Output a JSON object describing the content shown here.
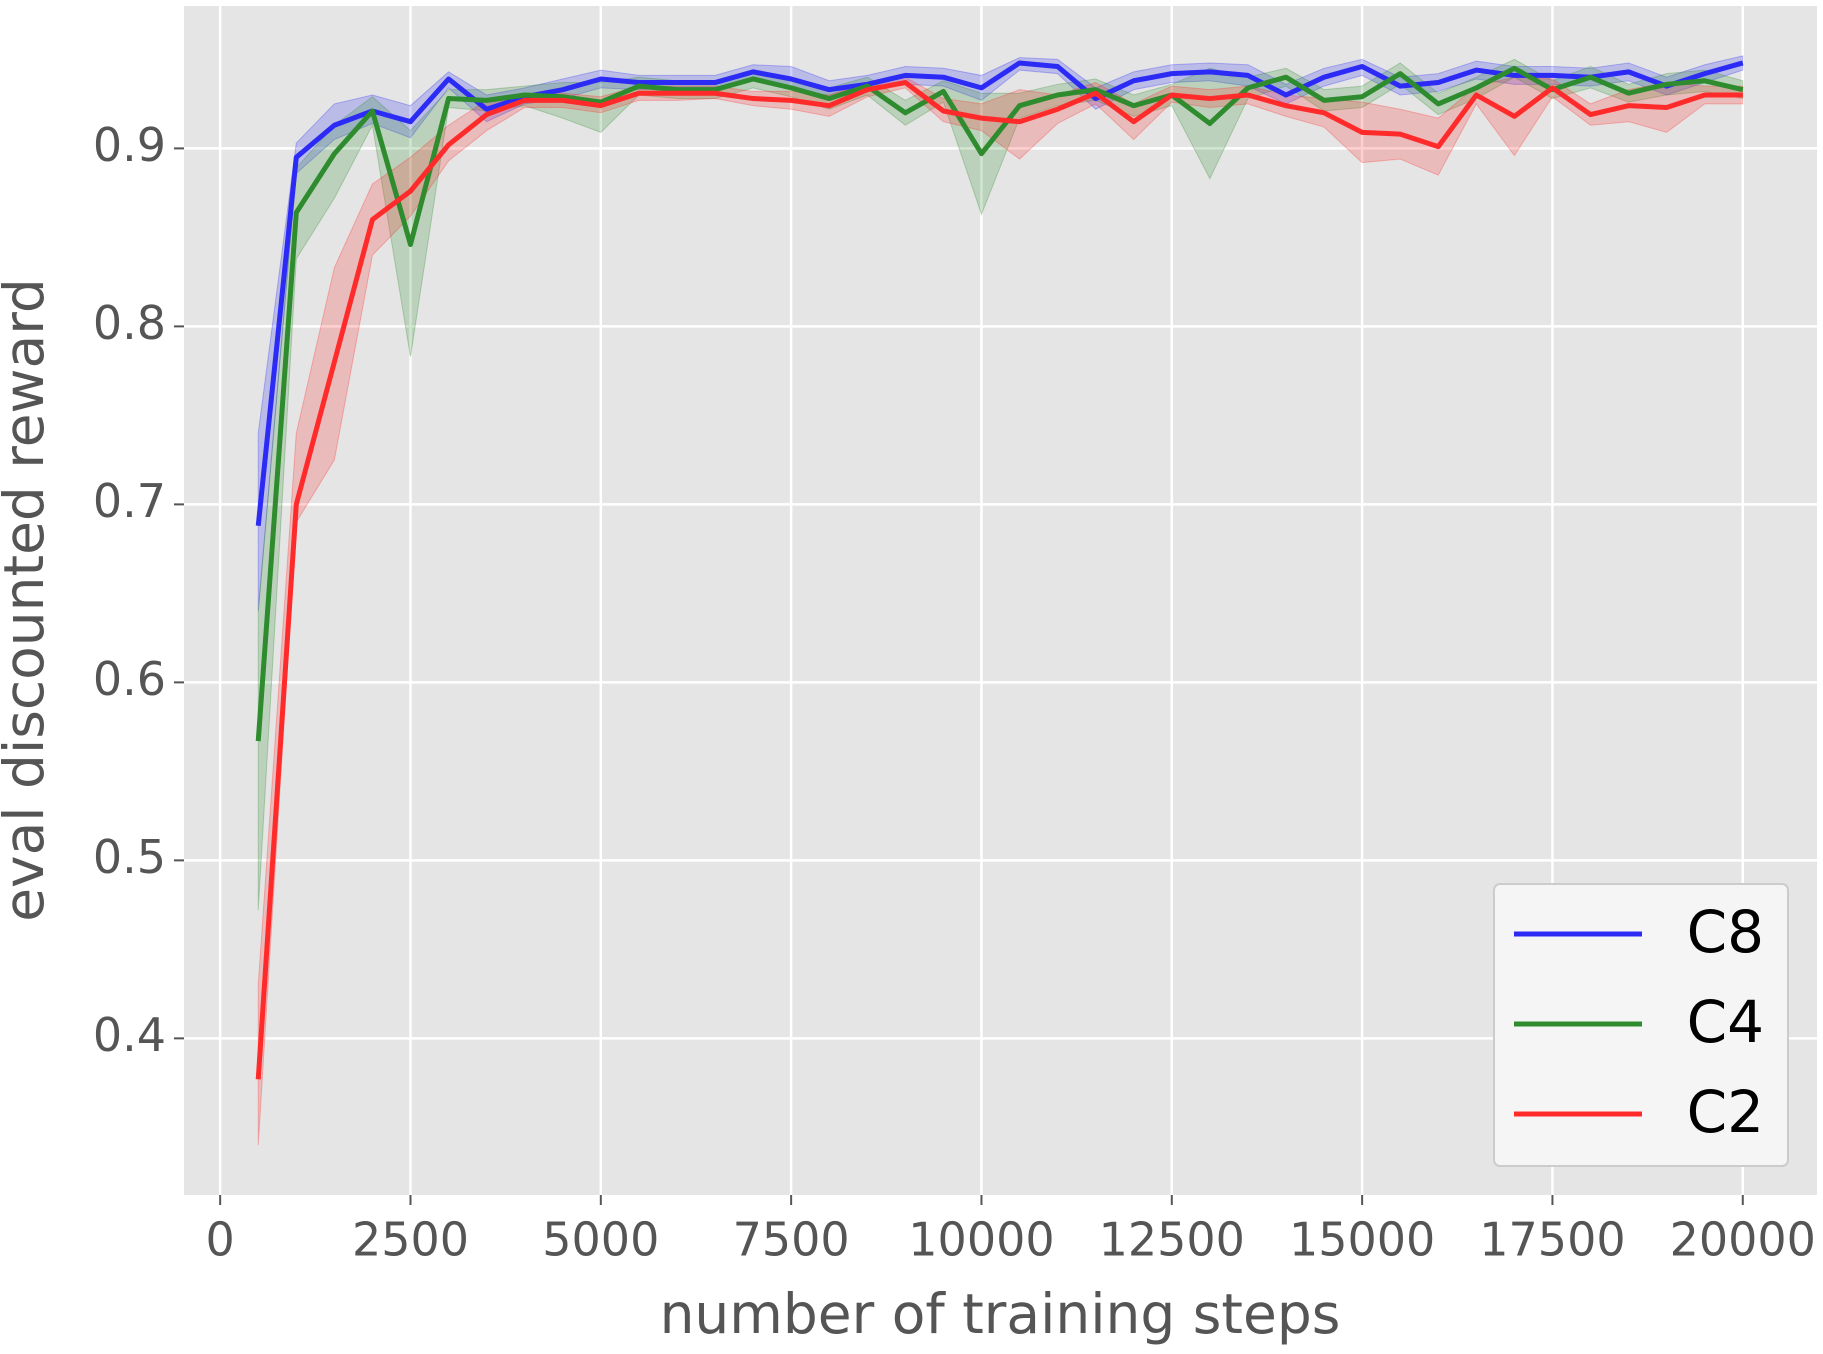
{
  "chart_data": {
    "type": "line",
    "xlabel": "number of training steps",
    "ylabel": "eval discounted reward",
    "x": [
      500,
      1000,
      1500,
      2000,
      2500,
      3000,
      3500,
      4000,
      4500,
      5000,
      5500,
      6000,
      6500,
      7000,
      7500,
      8000,
      8500,
      9000,
      9500,
      10000,
      10500,
      11000,
      11500,
      12000,
      12500,
      13000,
      13500,
      14000,
      14500,
      15000,
      15500,
      16000,
      16500,
      17000,
      17500,
      18000,
      18500,
      19000,
      19500,
      20000
    ],
    "series": [
      {
        "name": "C8",
        "color": "#2b2bf5",
        "values": [
          0.688,
          0.895,
          0.913,
          0.921,
          0.915,
          0.939,
          0.922,
          0.929,
          0.933,
          0.939,
          0.937,
          0.937,
          0.937,
          0.943,
          0.939,
          0.933,
          0.936,
          0.941,
          0.94,
          0.934,
          0.948,
          0.946,
          0.928,
          0.938,
          0.942,
          0.943,
          0.941,
          0.93,
          0.94,
          0.946,
          0.935,
          0.937,
          0.944,
          0.941,
          0.941,
          0.94,
          0.943,
          0.935,
          0.942,
          0.948
        ],
        "lower": [
          0.64,
          0.886,
          0.905,
          0.914,
          0.906,
          0.934,
          0.915,
          0.925,
          0.928,
          0.934,
          0.933,
          0.934,
          0.934,
          0.939,
          0.933,
          0.928,
          0.932,
          0.936,
          0.935,
          0.927,
          0.944,
          0.942,
          0.922,
          0.933,
          0.937,
          0.938,
          0.935,
          0.925,
          0.935,
          0.941,
          0.93,
          0.932,
          0.939,
          0.936,
          0.936,
          0.935,
          0.938,
          0.93,
          0.937,
          0.944
        ],
        "upper": [
          0.74,
          0.903,
          0.925,
          0.93,
          0.924,
          0.943,
          0.93,
          0.934,
          0.939,
          0.944,
          0.941,
          0.941,
          0.941,
          0.947,
          0.946,
          0.938,
          0.941,
          0.946,
          0.945,
          0.941,
          0.951,
          0.95,
          0.934,
          0.943,
          0.947,
          0.948,
          0.947,
          0.936,
          0.945,
          0.95,
          0.94,
          0.942,
          0.949,
          0.946,
          0.946,
          0.945,
          0.948,
          0.94,
          0.947,
          0.952
        ]
      },
      {
        "name": "C4",
        "color": "#2e8b2e",
        "values": [
          0.567,
          0.864,
          0.897,
          0.921,
          0.846,
          0.928,
          0.927,
          0.93,
          0.929,
          0.926,
          0.935,
          0.933,
          0.933,
          0.939,
          0.934,
          0.928,
          0.935,
          0.92,
          0.932,
          0.897,
          0.924,
          0.93,
          0.933,
          0.924,
          0.93,
          0.914,
          0.934,
          0.94,
          0.927,
          0.929,
          0.942,
          0.925,
          0.934,
          0.945,
          0.933,
          0.94,
          0.931,
          0.936,
          0.938,
          0.933
        ],
        "lower": [
          0.472,
          0.838,
          0.872,
          0.913,
          0.783,
          0.923,
          0.921,
          0.924,
          0.917,
          0.909,
          0.93,
          0.928,
          0.928,
          0.934,
          0.929,
          0.922,
          0.93,
          0.913,
          0.926,
          0.863,
          0.917,
          0.924,
          0.927,
          0.918,
          0.924,
          0.883,
          0.928,
          0.935,
          0.921,
          0.923,
          0.936,
          0.919,
          0.928,
          0.94,
          0.928,
          0.934,
          0.926,
          0.93,
          0.932,
          0.928
        ],
        "upper": [
          0.64,
          0.889,
          0.913,
          0.929,
          0.91,
          0.933,
          0.933,
          0.935,
          0.937,
          0.937,
          0.94,
          0.938,
          0.938,
          0.944,
          0.939,
          0.934,
          0.94,
          0.927,
          0.938,
          0.931,
          0.931,
          0.936,
          0.939,
          0.93,
          0.936,
          0.945,
          0.94,
          0.945,
          0.933,
          0.935,
          0.948,
          0.931,
          0.94,
          0.95,
          0.938,
          0.946,
          0.936,
          0.942,
          0.944,
          0.938
        ]
      },
      {
        "name": "C2",
        "color": "#ff2b2b",
        "values": [
          0.377,
          0.7,
          0.78,
          0.86,
          0.876,
          0.902,
          0.919,
          0.927,
          0.927,
          0.924,
          0.931,
          0.931,
          0.931,
          0.928,
          0.927,
          0.924,
          0.933,
          0.937,
          0.921,
          0.917,
          0.915,
          0.922,
          0.931,
          0.915,
          0.93,
          0.928,
          0.93,
          0.924,
          0.92,
          0.909,
          0.908,
          0.901,
          0.93,
          0.918,
          0.934,
          0.919,
          0.924,
          0.923,
          0.93,
          0.93
        ],
        "lower": [
          0.34,
          0.69,
          0.725,
          0.84,
          0.862,
          0.893,
          0.91,
          0.923,
          0.923,
          0.92,
          0.927,
          0.927,
          0.928,
          0.924,
          0.922,
          0.918,
          0.929,
          0.934,
          0.915,
          0.91,
          0.894,
          0.914,
          0.925,
          0.905,
          0.926,
          0.923,
          0.925,
          0.918,
          0.912,
          0.892,
          0.894,
          0.885,
          0.925,
          0.896,
          0.929,
          0.913,
          0.915,
          0.909,
          0.925,
          0.925
        ],
        "upper": [
          0.43,
          0.74,
          0.833,
          0.88,
          0.895,
          0.913,
          0.927,
          0.931,
          0.931,
          0.929,
          0.935,
          0.935,
          0.935,
          0.932,
          0.932,
          0.93,
          0.937,
          0.94,
          0.928,
          0.925,
          0.933,
          0.93,
          0.937,
          0.925,
          0.935,
          0.933,
          0.935,
          0.93,
          0.928,
          0.926,
          0.922,
          0.917,
          0.935,
          0.94,
          0.939,
          0.925,
          0.933,
          0.937,
          0.935,
          0.935
        ]
      }
    ],
    "xlim": [
      -475,
      20975
    ],
    "ylim": [
      0.312,
      0.98
    ],
    "xticks": [
      0,
      2500,
      5000,
      7500,
      10000,
      12500,
      15000,
      17500,
      20000
    ],
    "yticks": [
      0.4,
      0.5,
      0.6,
      0.7,
      0.8,
      0.9
    ],
    "grid": true,
    "legend": "lower right"
  }
}
